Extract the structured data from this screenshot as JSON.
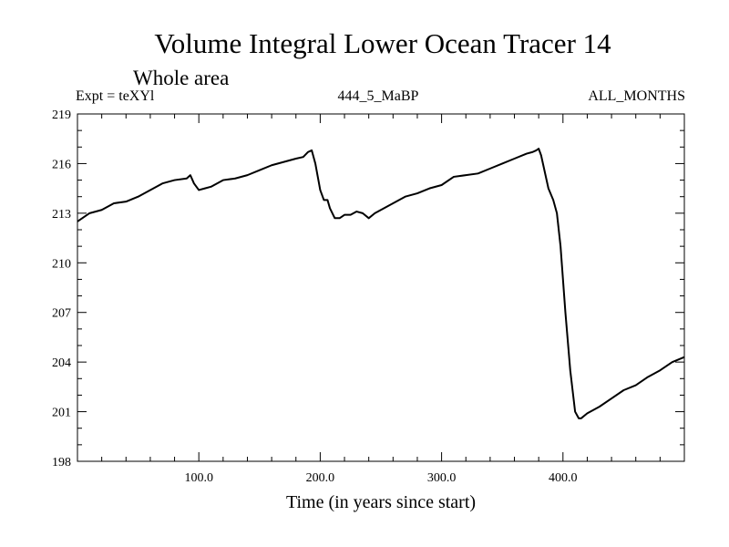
{
  "chart_data": {
    "type": "line",
    "title": "Volume Integral Lower Ocean Tracer 14",
    "subtitle": "Whole area",
    "annotations": {
      "left": "Expt = teXYl",
      "center": "444_5_MaBP",
      "right": "ALL_MONTHS"
    },
    "xlabel": "Time (in years since start)",
    "ylabel": "",
    "xlim": [
      0,
      500
    ],
    "ylim": [
      198,
      219
    ],
    "xticks": [
      100,
      200,
      300,
      400
    ],
    "xtick_labels": [
      "100.0",
      "200.0",
      "300.0",
      "400.0"
    ],
    "yticks": [
      198,
      201,
      204,
      207,
      210,
      213,
      216,
      219
    ],
    "ytick_labels": [
      "198",
      "201",
      "204",
      "207",
      "210",
      "213",
      "216",
      "219"
    ],
    "grid": false,
    "series": [
      {
        "color": "#000000",
        "x": [
          0,
          10,
          20,
          30,
          40,
          50,
          60,
          70,
          80,
          90,
          93,
          96,
          100,
          105,
          110,
          120,
          130,
          140,
          150,
          160,
          170,
          180,
          186,
          190,
          193,
          196,
          198,
          200,
          203,
          206,
          208,
          212,
          216,
          220,
          225,
          230,
          235,
          240,
          245,
          250,
          260,
          270,
          280,
          290,
          300,
          310,
          320,
          330,
          340,
          350,
          360,
          370,
          375,
          378,
          380,
          382,
          385,
          388,
          392,
          395,
          398,
          402,
          406,
          410,
          413,
          415,
          420,
          425,
          430,
          440,
          450,
          460,
          470,
          480,
          490,
          500
        ],
        "y": [
          212.5,
          213.0,
          213.2,
          213.6,
          213.7,
          214.0,
          214.4,
          214.8,
          215.0,
          215.1,
          215.3,
          214.8,
          214.4,
          214.5,
          214.6,
          215.0,
          215.1,
          215.3,
          215.6,
          215.9,
          216.1,
          216.3,
          216.4,
          216.7,
          216.8,
          216.0,
          215.2,
          214.4,
          213.8,
          213.8,
          213.3,
          212.7,
          212.7,
          212.9,
          212.9,
          213.1,
          213.0,
          212.7,
          213.0,
          213.2,
          213.6,
          214.0,
          214.2,
          214.5,
          214.7,
          215.2,
          215.3,
          215.4,
          215.7,
          216.0,
          216.3,
          216.6,
          216.7,
          216.8,
          216.9,
          216.5,
          215.5,
          214.5,
          213.8,
          213.0,
          211.0,
          207.0,
          203.5,
          201.0,
          200.6,
          200.6,
          200.9,
          201.1,
          201.3,
          201.8,
          202.3,
          202.6,
          203.1,
          203.5,
          204.0,
          204.3
        ]
      }
    ]
  }
}
